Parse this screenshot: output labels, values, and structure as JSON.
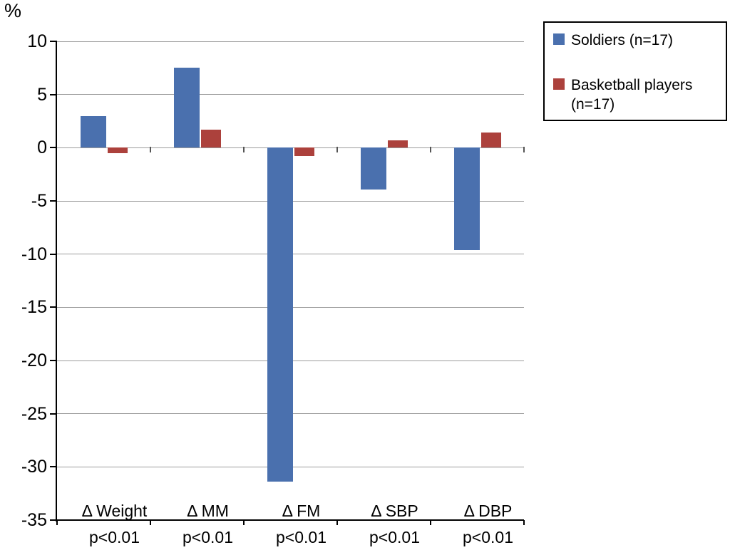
{
  "chart_data": {
    "type": "bar",
    "title": "",
    "xlabel": "",
    "ylabel": "%",
    "ylim": [
      -35,
      10
    ],
    "ytick_step": 5,
    "grid": true,
    "legend_position": "top-right",
    "gridline_color": "#9c9c9c",
    "axis_color": "#000000",
    "categories": [
      {
        "label": "Δ Weight",
        "p_value": "p<0.01"
      },
      {
        "label": "Δ MM",
        "p_value": "p<0.01"
      },
      {
        "label": "Δ FM",
        "p_value": "p<0.01"
      },
      {
        "label": "Δ SBP",
        "p_value": "p<0.01"
      },
      {
        "label": "Δ DBP",
        "p_value": "p<0.01"
      }
    ],
    "series": [
      {
        "name": "Soldiers (n=17)",
        "color": "#4a70ae",
        "values": [
          3.0,
          7.5,
          -31.4,
          -3.9,
          -9.6
        ]
      },
      {
        "name": "Basketball players (n=17)",
        "color": "#ac413c",
        "values": [
          -0.5,
          1.7,
          -0.8,
          0.7,
          1.4
        ]
      }
    ]
  }
}
